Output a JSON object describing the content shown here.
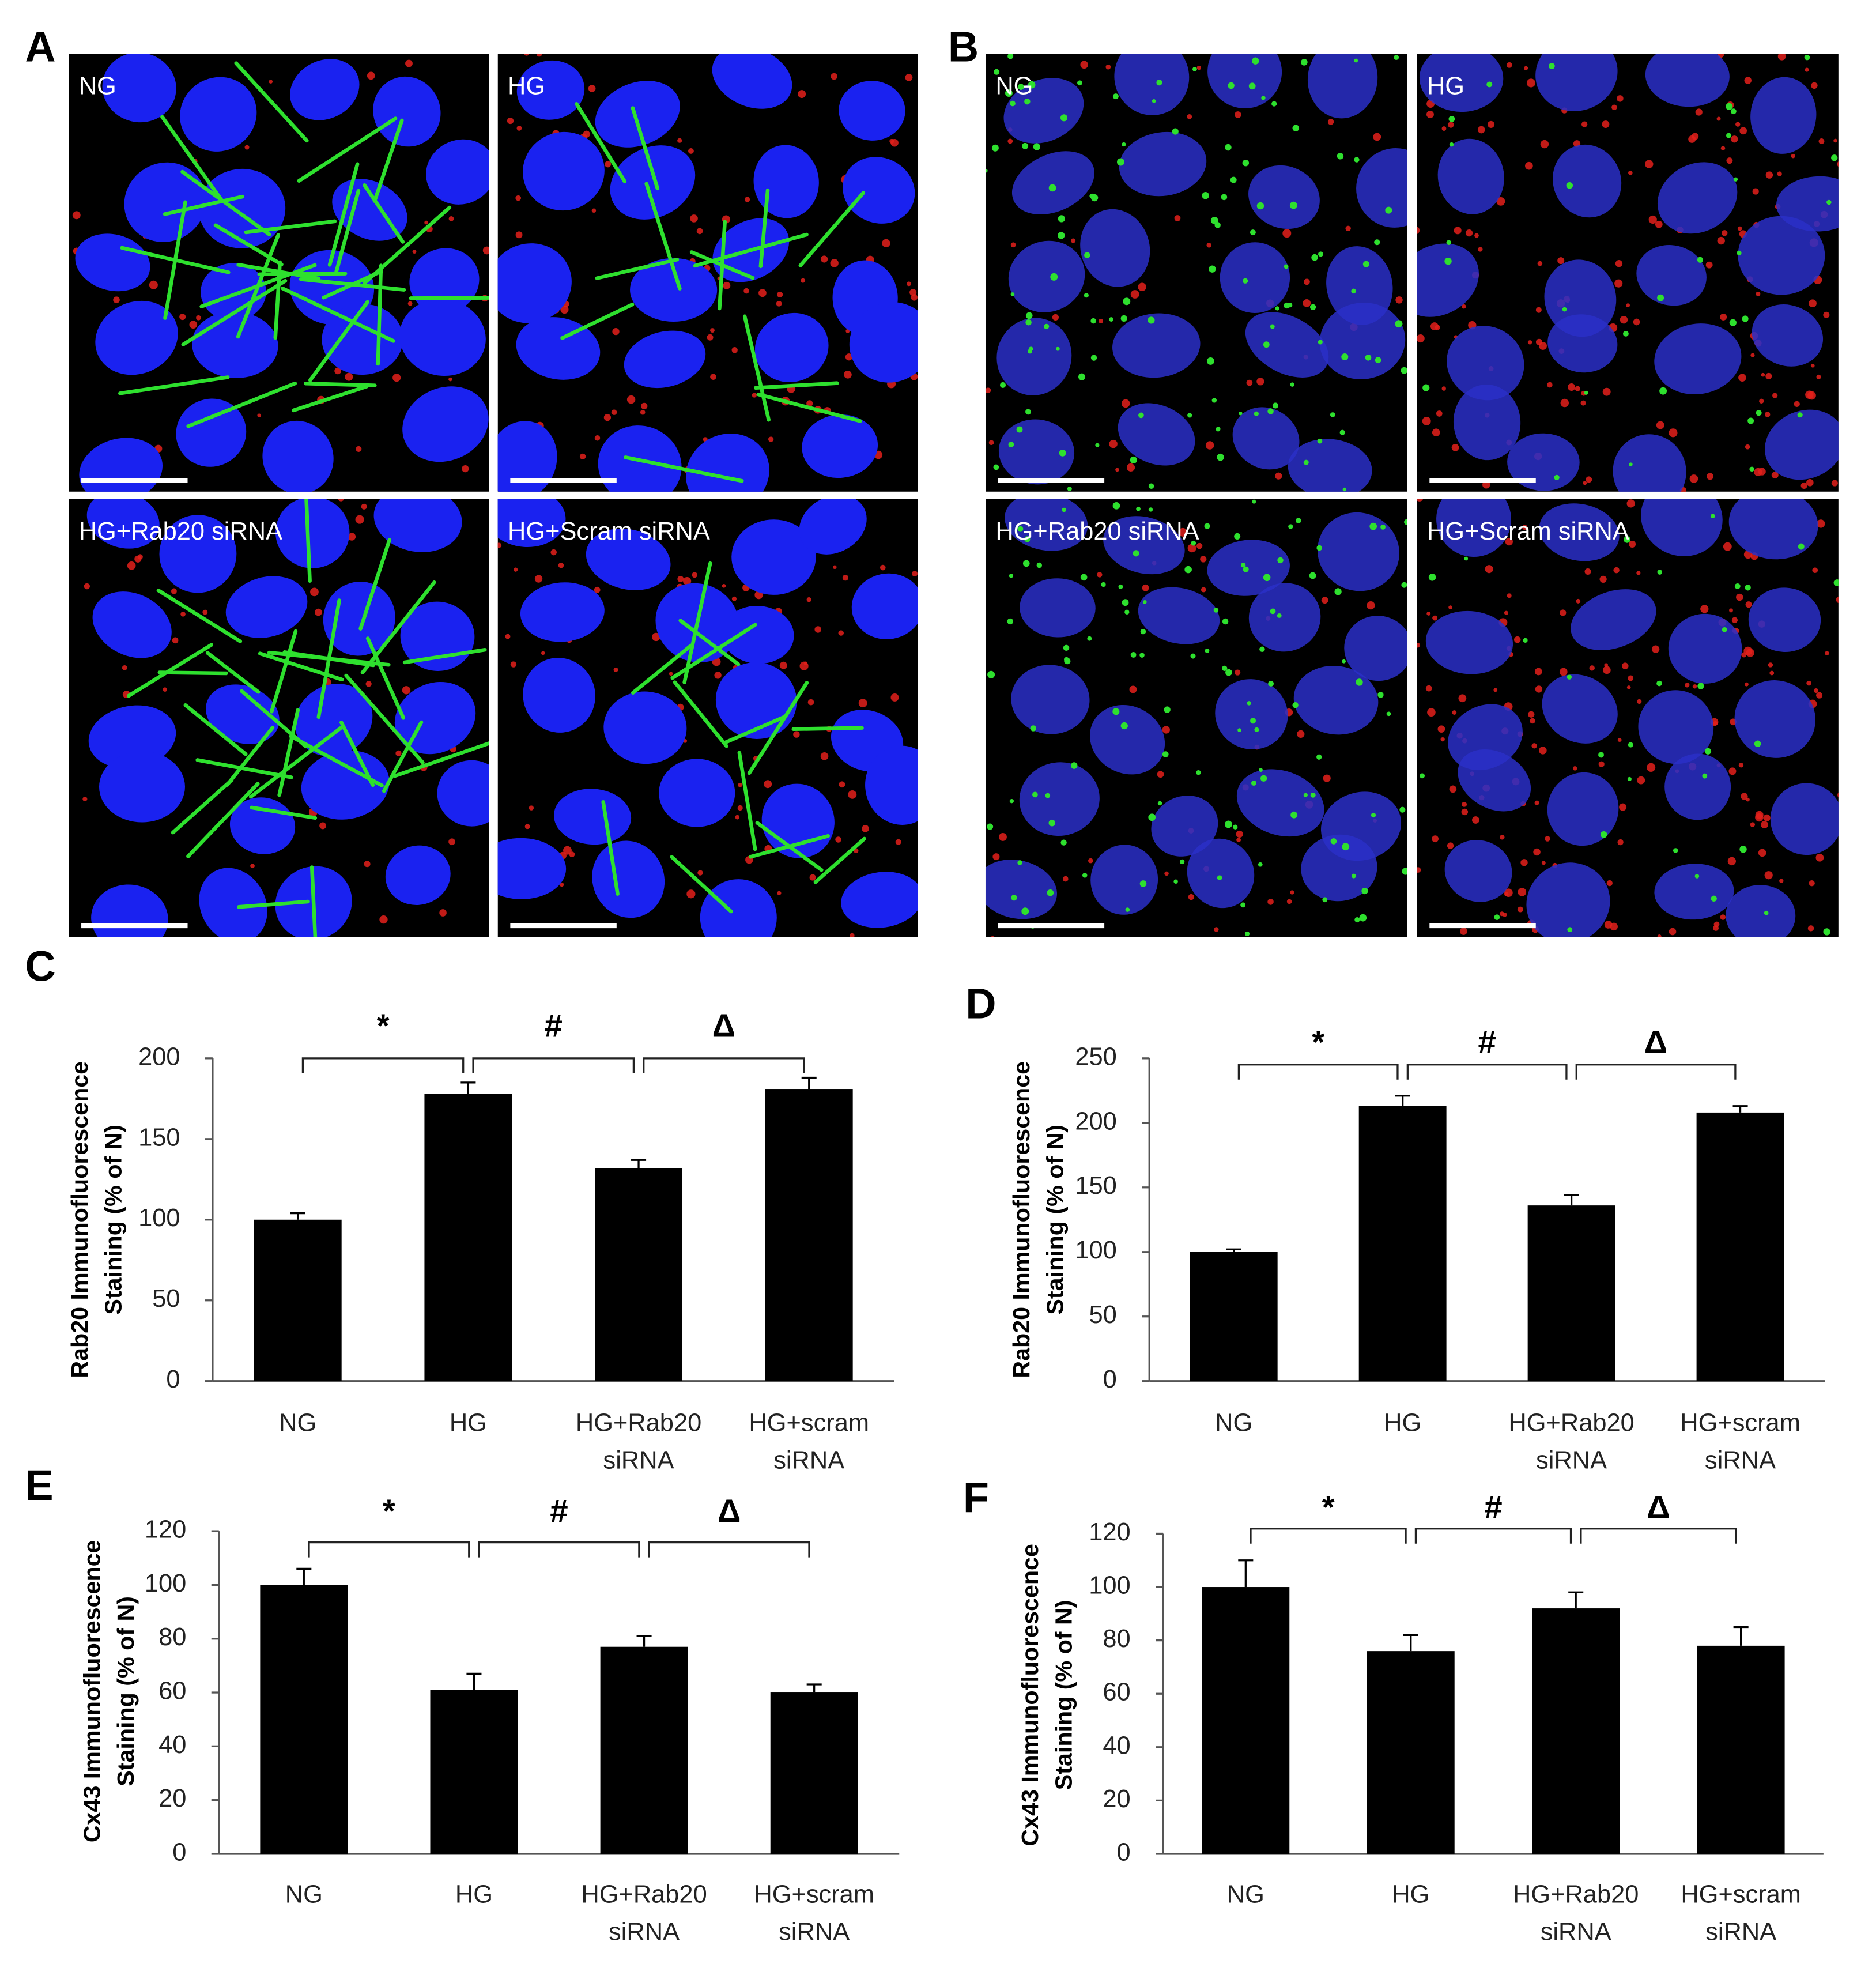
{
  "panels": [
    {
      "letter": "A",
      "images": [
        "NG",
        "HG",
        "HG+Rab20 siRNA",
        "HG+Scram siRNA"
      ]
    },
    {
      "letter": "B",
      "images": [
        "NG",
        "HG",
        "HG+Rab20 siRNA",
        "HG+Scram siRNA"
      ]
    }
  ],
  "chart_data": [
    {
      "type": "bar",
      "panel": "C",
      "ylabel": [
        "Rab20 Immunofluorescence",
        "Staining (% of N)"
      ],
      "categories": [
        "NG",
        "HG",
        "HG+Rab20 siRNA",
        "HG+scram siRNA"
      ],
      "values": [
        100,
        178,
        132,
        181
      ],
      "errors": [
        4,
        7,
        5,
        7
      ],
      "color": "#000000",
      "ylim": [
        0,
        200
      ],
      "yticks": [
        0,
        50,
        100,
        150,
        200
      ],
      "annotations": [
        "*",
        "#",
        "Δ"
      ]
    },
    {
      "type": "bar",
      "panel": "D",
      "ylabel": [
        "Rab20 Immunofluorescence",
        "Staining (% of N)"
      ],
      "categories": [
        "NG",
        "HG",
        "HG+Rab20 siRNA",
        "HG+scram siRNA"
      ],
      "values": [
        100,
        213,
        136,
        208
      ],
      "errors": [
        2,
        8,
        8,
        5
      ],
      "color": "#000000",
      "ylim": [
        0,
        250
      ],
      "yticks": [
        0,
        50,
        100,
        150,
        200,
        250
      ],
      "annotations": [
        "*",
        "#",
        "Δ"
      ]
    },
    {
      "type": "bar",
      "panel": "E",
      "ylabel": [
        "Cx43 Immunofluorescence",
        "Staining (% of N)"
      ],
      "categories": [
        "NG",
        "HG",
        "HG+Rab20 siRNA",
        "HG+scram siRNA"
      ],
      "values": [
        100,
        61,
        77,
        60
      ],
      "errors": [
        6,
        6,
        4,
        3
      ],
      "color": "#000000",
      "ylim": [
        0,
        120
      ],
      "yticks": [
        0,
        20,
        40,
        60,
        80,
        100,
        120
      ],
      "annotations": [
        "*",
        "#",
        "Δ"
      ]
    },
    {
      "type": "bar",
      "panel": "F",
      "ylabel": [
        "Cx43 Immunofluorescence",
        "Staining (% of N)"
      ],
      "categories": [
        "NG",
        "HG",
        "HG+Rab20 siRNA",
        "HG+scram siRNA"
      ],
      "values": [
        100,
        76,
        92,
        78
      ],
      "errors": [
        10,
        6,
        6,
        7
      ],
      "color": "#000000",
      "ylim": [
        0,
        120
      ],
      "yticks": [
        0,
        20,
        40,
        60,
        80,
        100,
        120
      ],
      "annotations": [
        "*",
        "#",
        "Δ"
      ]
    }
  ]
}
